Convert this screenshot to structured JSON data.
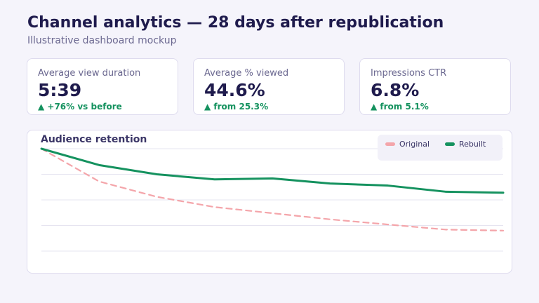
{
  "header": {
    "title": "Channel analytics — 28 days after republication",
    "subtitle": "Illustrative dashboard mockup"
  },
  "kpis": [
    {
      "label": "Average view duration",
      "value": "5:39",
      "delta": "▲ +76% vs before"
    },
    {
      "label": "Average % viewed",
      "value": "44.6%",
      "delta": "▲ from 25.3%"
    },
    {
      "label": "Impressions CTR",
      "value": "6.8%",
      "delta": "▲ from 5.1%"
    }
  ],
  "colors": {
    "original": "#f4a5aa",
    "rebuilt": "#15925f",
    "accent": "#1f1b4d"
  },
  "chart_data": {
    "type": "line",
    "title": "Audience retention",
    "ylim": [
      0,
      100
    ],
    "x": [
      0,
      1,
      2,
      3,
      4,
      5,
      6,
      7,
      8
    ],
    "grid": true,
    "legend_position": "top-right",
    "series": [
      {
        "name": "Original",
        "style": "dashed",
        "values": [
          100,
          68,
          53,
          43,
          37,
          31,
          26,
          21,
          20
        ]
      },
      {
        "name": "Rebuilt",
        "style": "solid",
        "values": [
          100,
          84,
          75,
          70,
          71,
          66,
          64,
          58,
          57
        ]
      }
    ]
  }
}
